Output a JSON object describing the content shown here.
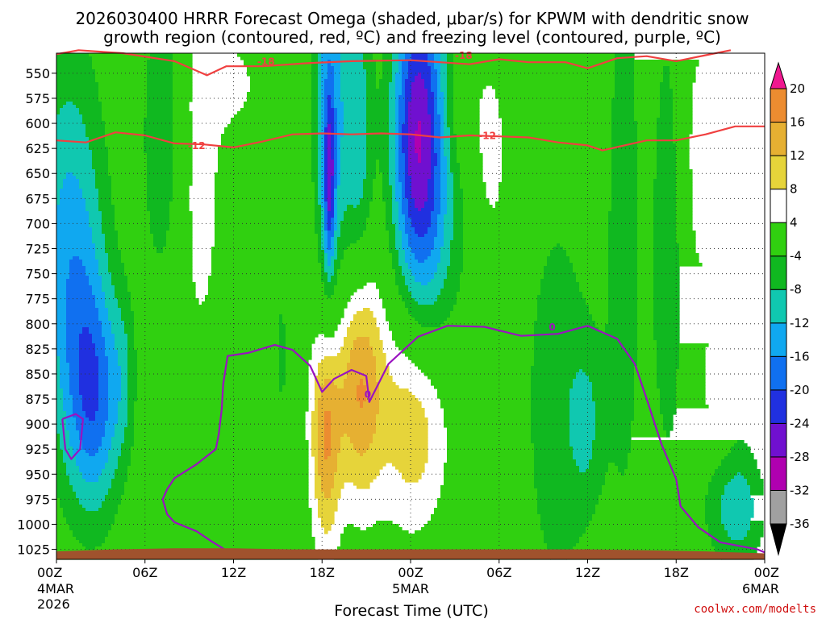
{
  "chart_data": {
    "type": "heatmap",
    "title_line1": "2026030400 HRRR Forecast Omega (shaded, μbar/s) for KPWM with dendritic snow",
    "title_line2": "growth region (contoured, red, ºC) and freezing level (contoured, purple, ºC)",
    "xlabel": "Forecast Time (UTC)",
    "credit": "coolwx.com/modelts",
    "x_range_hours": [
      0,
      48
    ],
    "y_range_hpa": [
      530,
      1035
    ],
    "y_ticks": [
      550,
      575,
      600,
      625,
      650,
      675,
      700,
      725,
      750,
      775,
      800,
      825,
      850,
      875,
      900,
      925,
      950,
      975,
      1000,
      1025
    ],
    "y_tick_labels": [
      "550",
      "575",
      "600",
      "625",
      "650",
      "675",
      "700",
      "725",
      "750",
      "775",
      "800",
      "825",
      "850",
      "875",
      "900",
      "925",
      "950",
      "975",
      "1000",
      "1025"
    ],
    "x_ticks": [
      {
        "hour": 0,
        "l1": "00Z",
        "l2": "4MAR",
        "l3": "2026"
      },
      {
        "hour": 6,
        "l1": "06Z",
        "l2": "",
        "l3": ""
      },
      {
        "hour": 12,
        "l1": "12Z",
        "l2": "",
        "l3": ""
      },
      {
        "hour": 18,
        "l1": "18Z",
        "l2": "",
        "l3": ""
      },
      {
        "hour": 24,
        "l1": "00Z",
        "l2": "5MAR",
        "l3": ""
      },
      {
        "hour": 30,
        "l1": "06Z",
        "l2": "",
        "l3": ""
      },
      {
        "hour": 36,
        "l1": "12Z",
        "l2": "",
        "l3": ""
      },
      {
        "hour": 42,
        "l1": "18Z",
        "l2": "",
        "l3": ""
      },
      {
        "hour": 48,
        "l1": "00Z",
        "l2": "6MAR",
        "l3": ""
      }
    ],
    "colorbar": {
      "levels": [
        -36,
        -32,
        -28,
        -24,
        -20,
        -16,
        -12,
        -8,
        -4,
        4,
        8,
        12,
        16,
        20
      ],
      "tick_labels": [
        "-36",
        "-32",
        "-28",
        "-24",
        "-20",
        "-16",
        "-12",
        "-8",
        "-4",
        "4",
        "8",
        "12",
        "16",
        "20"
      ],
      "colors": [
        "#000000",
        "#a0a0a0",
        "#b000b0",
        "#7010d0",
        "#2030e0",
        "#1070f0",
        "#10a8f0",
        "#10c8b0",
        "#10b820",
        "#30d010",
        "#ffffff",
        "#e6d43a",
        "#e6b032",
        "#ec8c30",
        "#ff5050",
        "#f01890"
      ]
    },
    "omega_blobs": [
      {
        "h": 0.8,
        "p": 700,
        "sh": 1.8,
        "sp": 140,
        "a": -11
      },
      {
        "h": 2.7,
        "p": 880,
        "sh": 1.3,
        "sp": 80,
        "a": -14
      },
      {
        "h": 1.5,
        "p": 820,
        "sh": 1.5,
        "sp": 110,
        "a": -6
      },
      {
        "h": 7.2,
        "p": 610,
        "sh": 1.0,
        "sp": 110,
        "a": -8
      },
      {
        "h": 4.6,
        "p": 850,
        "sh": 0.6,
        "sp": 60,
        "a": -4.5
      },
      {
        "h": 9.7,
        "p": 650,
        "sh": 1.2,
        "sp": 150,
        "a": 6
      },
      {
        "h": 12.0,
        "p": 560,
        "sh": 1.5,
        "sp": 35,
        "a": 5
      },
      {
        "h": 17.6,
        "p": 700,
        "sh": 0.9,
        "sp": 200,
        "a": 5
      },
      {
        "h": 18.3,
        "p": 950,
        "sh": 0.7,
        "sp": 80,
        "a": 6
      },
      {
        "h": 15.3,
        "p": 830,
        "sh": 0.25,
        "sp": 80,
        "a": -5
      },
      {
        "h": 18.4,
        "p": 600,
        "sh": 0.9,
        "sp": 150,
        "a": -18
      },
      {
        "h": 18.5,
        "p": 660,
        "sh": 0.25,
        "sp": 60,
        "a": -14
      },
      {
        "h": 20.5,
        "p": 620,
        "sh": 0.7,
        "sp": 130,
        "a": -10
      },
      {
        "h": 24.4,
        "p": 610,
        "sh": 1.2,
        "sp": 110,
        "a": -22
      },
      {
        "h": 25.6,
        "p": 680,
        "sh": 1.6,
        "sp": 160,
        "a": -9
      },
      {
        "h": 20.5,
        "p": 855,
        "sh": 1.1,
        "sp": 85,
        "a": 17
      },
      {
        "h": 18.3,
        "p": 895,
        "sh": 0.7,
        "sp": 65,
        "a": 10
      },
      {
        "h": 24.4,
        "p": 895,
        "sh": 1.8,
        "sp": 80,
        "a": 13
      },
      {
        "h": 27.5,
        "p": 580,
        "sh": 1.0,
        "sp": 50,
        "a": 5
      },
      {
        "h": 29.5,
        "p": 630,
        "sh": 0.8,
        "sp": 70,
        "a": 6
      },
      {
        "h": 33.0,
        "p": 560,
        "sh": 0.8,
        "sp": 30,
        "a": 4.5
      },
      {
        "h": 34.0,
        "p": 880,
        "sh": 1.7,
        "sp": 150,
        "a": -7
      },
      {
        "h": 36.0,
        "p": 900,
        "sh": 0.8,
        "sp": 60,
        "a": -6
      },
      {
        "h": 38.5,
        "p": 700,
        "sh": 1.0,
        "sp": 260,
        "a": -6
      },
      {
        "h": 43.5,
        "p": 640,
        "sh": 1.8,
        "sp": 120,
        "a": 6
      },
      {
        "h": 47.0,
        "p": 600,
        "sh": 1.0,
        "sp": 100,
        "a": 5
      },
      {
        "h": 41.5,
        "p": 700,
        "sh": 0.8,
        "sp": 160,
        "a": -10
      },
      {
        "h": 46.5,
        "p": 700,
        "sh": 0.7,
        "sp": 160,
        "a": -5
      },
      {
        "h": 46.0,
        "p": 985,
        "sh": 1.5,
        "sp": 40,
        "a": -10
      },
      {
        "h": 44.3,
        "p": 860,
        "sh": 0.45,
        "sp": 35,
        "a": 4.5
      }
    ],
    "dgz_contours": [
      {
        "level": "-18",
        "points": [
          [
            0,
            531
          ],
          [
            1.5,
            527
          ],
          [
            4.5,
            530
          ],
          [
            8,
            538
          ],
          [
            10.2,
            552
          ],
          [
            11.5,
            543
          ],
          [
            14,
            543
          ],
          [
            17,
            540
          ],
          [
            20,
            538
          ],
          [
            24,
            537
          ],
          [
            28,
            541
          ],
          [
            30,
            536
          ],
          [
            32,
            539
          ],
          [
            34.5,
            539
          ],
          [
            36,
            545
          ],
          [
            38,
            535
          ],
          [
            40,
            533
          ],
          [
            42,
            538
          ],
          [
            44,
            532
          ],
          [
            45.7,
            527
          ]
        ]
      },
      {
        "level": "-12",
        "points": [
          [
            0,
            617
          ],
          [
            2,
            619
          ],
          [
            4,
            609
          ],
          [
            6,
            612
          ],
          [
            8,
            620
          ],
          [
            10,
            621
          ],
          [
            12,
            624
          ],
          [
            14,
            618
          ],
          [
            16,
            611
          ],
          [
            18,
            610
          ],
          [
            20,
            611
          ],
          [
            22,
            610
          ],
          [
            24,
            611
          ],
          [
            26,
            614
          ],
          [
            28,
            612
          ],
          [
            30,
            613
          ],
          [
            32,
            614
          ],
          [
            34,
            619
          ],
          [
            36,
            622
          ],
          [
            37,
            627
          ],
          [
            40,
            617
          ],
          [
            42,
            617
          ],
          [
            44,
            611
          ],
          [
            46,
            603
          ],
          [
            48,
            603
          ]
        ]
      }
    ],
    "freezing_contours": [
      {
        "level": "0",
        "points": [
          [
            13.8,
            1030
          ],
          [
            11.5,
            1026
          ],
          [
            10.5,
            1017
          ],
          [
            9.5,
            1007
          ],
          [
            8.0,
            998
          ],
          [
            7.5,
            990
          ],
          [
            7.2,
            975
          ],
          [
            7.5,
            965
          ],
          [
            8.0,
            954
          ],
          [
            9.5,
            940
          ],
          [
            10.8,
            925
          ],
          [
            11.0,
            910
          ],
          [
            11.2,
            885
          ],
          [
            11.3,
            860
          ],
          [
            11.6,
            832
          ],
          [
            13,
            829
          ],
          [
            14.8,
            821
          ],
          [
            16,
            826
          ],
          [
            17.2,
            842
          ],
          [
            18.0,
            868
          ],
          [
            18.8,
            855
          ],
          [
            20,
            846
          ],
          [
            21.0,
            852
          ],
          [
            21.2,
            878
          ],
          [
            22.5,
            840
          ],
          [
            24.5,
            813
          ],
          [
            26.5,
            802
          ],
          [
            29,
            803
          ],
          [
            31.5,
            812
          ],
          [
            34,
            810
          ],
          [
            36,
            802
          ],
          [
            38,
            815
          ],
          [
            39.2,
            840
          ],
          [
            40.0,
            875
          ],
          [
            41.0,
            920
          ],
          [
            42.0,
            955
          ],
          [
            42.3,
            982
          ],
          [
            43.5,
            1003
          ],
          [
            45.0,
            1018
          ],
          [
            47.5,
            1025
          ],
          [
            48,
            1028
          ]
        ]
      },
      {
        "level": "0",
        "points": [
          [
            0.4,
            895
          ],
          [
            1.3,
            890
          ],
          [
            1.8,
            895
          ],
          [
            1.6,
            925
          ],
          [
            1.0,
            935
          ],
          [
            0.6,
            925
          ],
          [
            0.4,
            895
          ]
        ]
      }
    ],
    "contour_labels": [
      {
        "text": "-18",
        "h": 14.2,
        "p": 538,
        "color": "#f04040"
      },
      {
        "text": "-18",
        "h": 27.6,
        "p": 532,
        "color": "#f04040"
      },
      {
        "text": "-12",
        "h": 9.5,
        "p": 622,
        "color": "#f04040"
      },
      {
        "text": "-12",
        "h": 29.2,
        "p": 612,
        "color": "#f04040"
      },
      {
        "text": "0",
        "h": 33.6,
        "p": 803,
        "color": "#a010c0"
      },
      {
        "text": "0",
        "h": 21.1,
        "p": 870,
        "color": "#a010c0"
      }
    ]
  }
}
